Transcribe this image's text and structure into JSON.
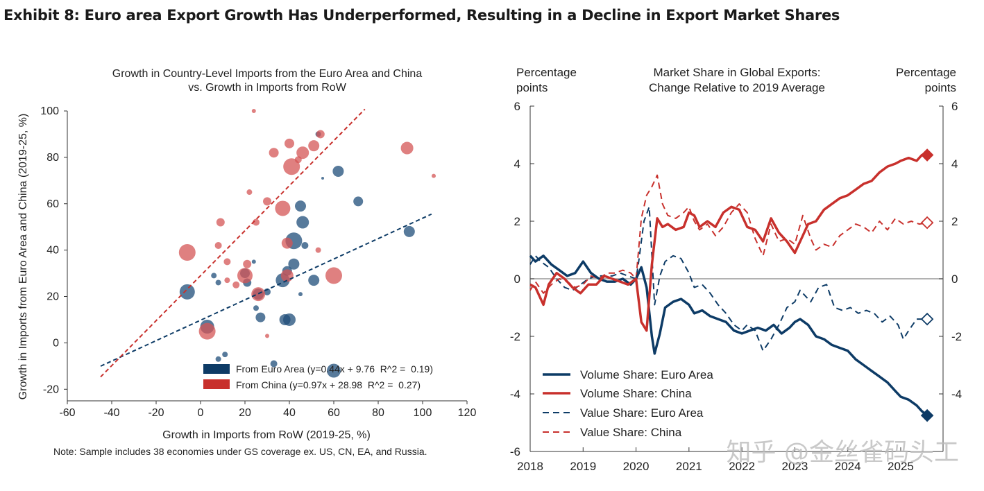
{
  "exhibit_title": "Exhibit 8: Euro area Export Growth Has Underperformed, Resulting in a Decline in Export Market Shares",
  "note": "Note: Sample includes 38 economies under GS coverage ex. US, CN, EA, and Russia.",
  "watermark": "知乎 @金丝雀码头工",
  "colors": {
    "navy": "#0d3b66",
    "red": "#c8302c",
    "navy_bubble": "#1f4e79",
    "red_bubble": "#d45555",
    "zero_line": "#999999"
  },
  "chart_data": [
    {
      "type": "scatter",
      "title_line1": "Growth in Country-Level Imports from the Euro Area and China",
      "title_line2": "vs. Growth in Imports from RoW",
      "xlabel": "Growth in Imports from RoW (2019-25, %)",
      "ylabel": "Growth in Imports from Euro Area and China (2019-25, %)",
      "xlim": [
        -60,
        120
      ],
      "ylim": [
        -25,
        100
      ],
      "xticks": [
        -60,
        -40,
        -20,
        0,
        20,
        40,
        60,
        80,
        100,
        120
      ],
      "yticks": [
        -20,
        0,
        20,
        40,
        60,
        80,
        100
      ],
      "legend_position": "bottom-right",
      "series": [
        {
          "name": "From Euro Area (y=0.44x + 9.76  R^2 =  0.19)",
          "color": "#0d3b66",
          "fit": {
            "slope": 0.44,
            "intercept": 9.76,
            "x_range": [
              -45,
              104
            ]
          },
          "points": [
            {
              "x": -6,
              "y": 22,
              "s": 11
            },
            {
              "x": 3,
              "y": 7,
              "s": 10
            },
            {
              "x": 6,
              "y": 29,
              "s": 4
            },
            {
              "x": 8,
              "y": 26,
              "s": 4
            },
            {
              "x": 8,
              "y": -7,
              "s": 4
            },
            {
              "x": 11,
              "y": -5,
              "s": 4
            },
            {
              "x": 20,
              "y": 30,
              "s": 7
            },
            {
              "x": 21,
              "y": 26,
              "s": 6
            },
            {
              "x": 24,
              "y": 35,
              "s": 3
            },
            {
              "x": 25,
              "y": 15,
              "s": 4
            },
            {
              "x": 26,
              "y": 21,
              "s": 8
            },
            {
              "x": 27,
              "y": 11,
              "s": 7
            },
            {
              "x": 30,
              "y": 22,
              "s": 5
            },
            {
              "x": 33,
              "y": -9,
              "s": 5
            },
            {
              "x": 37,
              "y": 27,
              "s": 10
            },
            {
              "x": 38,
              "y": 10,
              "s": 8
            },
            {
              "x": 39,
              "y": 31,
              "s": 7
            },
            {
              "x": 40,
              "y": 10,
              "s": 9
            },
            {
              "x": 42,
              "y": 44,
              "s": 12
            },
            {
              "x": 42,
              "y": 34,
              "s": 8
            },
            {
              "x": 45,
              "y": 59,
              "s": 8
            },
            {
              "x": 46,
              "y": 52,
              "s": 9
            },
            {
              "x": 45,
              "y": 21,
              "s": 3
            },
            {
              "x": 47,
              "y": 42,
              "s": 5
            },
            {
              "x": 51,
              "y": 27,
              "s": 8
            },
            {
              "x": 53,
              "y": 90,
              "s": 4
            },
            {
              "x": 55,
              "y": 71,
              "s": 2
            },
            {
              "x": 60,
              "y": -12,
              "s": 10
            },
            {
              "x": 62,
              "y": 74,
              "s": 8
            },
            {
              "x": 71,
              "y": 61,
              "s": 7
            },
            {
              "x": 94,
              "y": 48,
              "s": 8
            }
          ]
        },
        {
          "name": "From China (y=0.97x + 28.98  R^2 =  0.27)",
          "color": "#c8302c",
          "fit": {
            "slope": 0.97,
            "intercept": 28.98,
            "x_range": [
              -45,
              74
            ]
          },
          "points": [
            {
              "x": -6,
              "y": 39,
              "s": 12
            },
            {
              "x": 3,
              "y": 5,
              "s": 12
            },
            {
              "x": 8,
              "y": 42,
              "s": 5
            },
            {
              "x": 9,
              "y": 52,
              "s": 6
            },
            {
              "x": 12,
              "y": 35,
              "s": 5
            },
            {
              "x": 12,
              "y": 27,
              "s": 4
            },
            {
              "x": 16,
              "y": 25,
              "s": 5
            },
            {
              "x": 20,
              "y": 29,
              "s": 11
            },
            {
              "x": 21,
              "y": 34,
              "s": 6
            },
            {
              "x": 22,
              "y": 65,
              "s": 4
            },
            {
              "x": 24,
              "y": 100,
              "s": 3
            },
            {
              "x": 25,
              "y": 52,
              "s": 5
            },
            {
              "x": 26,
              "y": 21,
              "s": 10
            },
            {
              "x": 30,
              "y": 61,
              "s": 6
            },
            {
              "x": 30,
              "y": 3,
              "s": 3
            },
            {
              "x": 33,
              "y": 82,
              "s": 7
            },
            {
              "x": 37,
              "y": 58,
              "s": 11
            },
            {
              "x": 39,
              "y": 43,
              "s": 8
            },
            {
              "x": 39,
              "y": 29,
              "s": 9
            },
            {
              "x": 40,
              "y": 86,
              "s": 7
            },
            {
              "x": 41,
              "y": 76,
              "s": 12
            },
            {
              "x": 44,
              "y": 79,
              "s": 5
            },
            {
              "x": 46,
              "y": 82,
              "s": 9
            },
            {
              "x": 51,
              "y": 85,
              "s": 8
            },
            {
              "x": 53,
              "y": 40,
              "s": 4
            },
            {
              "x": 54,
              "y": 90,
              "s": 6
            },
            {
              "x": 60,
              "y": 29,
              "s": 12
            },
            {
              "x": 93,
              "y": 84,
              "s": 9
            },
            {
              "x": 105,
              "y": 72,
              "s": 3
            }
          ]
        }
      ]
    },
    {
      "type": "line",
      "title_line1": "Market Share in Global Exports:",
      "title_line2": "Change Relative to 2019 Average",
      "ylabel_left": [
        "Percentage",
        "points"
      ],
      "ylabel_right": [
        "Percentage",
        "points"
      ],
      "xlim": [
        2018,
        2025.8
      ],
      "ylim": [
        -6,
        6
      ],
      "xticks": [
        2018,
        2019,
        2020,
        2021,
        2022,
        2023,
        2024,
        2025
      ],
      "yticks_left": [
        -6,
        -4,
        -2,
        0,
        2,
        4,
        6
      ],
      "yticks_right": [
        "6",
        "4",
        "2",
        "0",
        "-2",
        "-4"
      ],
      "legend_position": "bottom-left",
      "series": [
        {
          "name": "Volume Share: Euro Area",
          "color": "#0d3b66",
          "style": "solid",
          "end_marker": "filled-diamond",
          "x": [
            2018.0,
            2018.1,
            2018.25,
            2018.4,
            2018.55,
            2018.7,
            2018.85,
            2019.0,
            2019.15,
            2019.3,
            2019.45,
            2019.6,
            2019.75,
            2019.9,
            2020.0,
            2020.1,
            2020.2,
            2020.3,
            2020.35,
            2020.45,
            2020.55,
            2020.7,
            2020.85,
            2021.0,
            2021.1,
            2021.25,
            2021.4,
            2021.55,
            2021.7,
            2021.85,
            2022.0,
            2022.15,
            2022.3,
            2022.45,
            2022.6,
            2022.75,
            2022.9,
            2023.0,
            2023.1,
            2023.25,
            2023.4,
            2023.55,
            2023.7,
            2023.85,
            2024.0,
            2024.15,
            2024.3,
            2024.45,
            2024.6,
            2024.75,
            2024.9,
            2025.0,
            2025.15,
            2025.3,
            2025.4,
            2025.5
          ],
          "y": [
            0.8,
            0.6,
            0.8,
            0.5,
            0.3,
            0.1,
            0.2,
            0.6,
            0.2,
            0.0,
            -0.1,
            -0.1,
            0.0,
            -0.2,
            0.0,
            0.4,
            -0.3,
            -2.0,
            -2.6,
            -1.9,
            -1.0,
            -0.8,
            -0.7,
            -0.9,
            -1.2,
            -1.1,
            -1.3,
            -1.4,
            -1.5,
            -1.8,
            -1.9,
            -1.8,
            -1.7,
            -1.8,
            -1.6,
            -1.9,
            -1.7,
            -1.5,
            -1.4,
            -1.6,
            -2.0,
            -2.1,
            -2.3,
            -2.4,
            -2.5,
            -2.8,
            -3.0,
            -3.2,
            -3.4,
            -3.6,
            -3.9,
            -4.1,
            -4.2,
            -4.4,
            -4.6,
            -4.75
          ]
        },
        {
          "name": "Volume Share: China",
          "color": "#c8302c",
          "style": "solid",
          "end_marker": "filled-diamond",
          "x": [
            2018.0,
            2018.1,
            2018.25,
            2018.35,
            2018.5,
            2018.65,
            2018.8,
            2018.95,
            2019.1,
            2019.25,
            2019.4,
            2019.55,
            2019.7,
            2019.85,
            2020.0,
            2020.1,
            2020.2,
            2020.3,
            2020.4,
            2020.5,
            2020.6,
            2020.75,
            2020.9,
            2021.0,
            2021.1,
            2021.2,
            2021.35,
            2021.5,
            2021.65,
            2021.8,
            2021.95,
            2022.1,
            2022.25,
            2022.4,
            2022.55,
            2022.7,
            2022.85,
            2023.0,
            2023.15,
            2023.25,
            2023.4,
            2023.55,
            2023.7,
            2023.85,
            2024.0,
            2024.15,
            2024.3,
            2024.45,
            2024.6,
            2024.75,
            2024.9,
            2025.0,
            2025.15,
            2025.3,
            2025.4,
            2025.5
          ],
          "y": [
            -0.2,
            -0.3,
            -0.9,
            -0.2,
            0.2,
            0.0,
            -0.3,
            -0.5,
            -0.2,
            -0.2,
            0.1,
            0.0,
            -0.1,
            -0.2,
            0.0,
            -1.5,
            -1.8,
            0.5,
            2.1,
            1.8,
            1.9,
            1.7,
            1.8,
            2.3,
            2.2,
            1.8,
            2.0,
            1.8,
            2.3,
            2.5,
            2.4,
            1.8,
            1.7,
            1.3,
            2.1,
            1.6,
            1.3,
            0.9,
            1.5,
            1.9,
            2.0,
            2.4,
            2.6,
            2.8,
            2.9,
            3.1,
            3.3,
            3.4,
            3.7,
            3.9,
            4.0,
            4.1,
            4.2,
            4.1,
            4.3,
            4.3
          ]
        },
        {
          "name": "Value Share: Euro Area",
          "color": "#0d3b66",
          "style": "dashed",
          "end_marker": "open-diamond",
          "x": [
            2018.0,
            2018.1,
            2018.2,
            2018.35,
            2018.5,
            2018.65,
            2018.8,
            2018.95,
            2019.1,
            2019.25,
            2019.4,
            2019.55,
            2019.7,
            2019.85,
            2020.0,
            2020.05,
            2020.15,
            2020.25,
            2020.35,
            2020.45,
            2020.55,
            2020.7,
            2020.85,
            2021.0,
            2021.1,
            2021.25,
            2021.4,
            2021.55,
            2021.7,
            2021.85,
            2022.0,
            2022.1,
            2022.25,
            2022.4,
            2022.55,
            2022.7,
            2022.85,
            2023.0,
            2023.1,
            2023.2,
            2023.3,
            2023.45,
            2023.6,
            2023.75,
            2023.9,
            2024.05,
            2024.2,
            2024.35,
            2024.5,
            2024.65,
            2024.8,
            2024.95,
            2025.05,
            2025.15,
            2025.3,
            2025.5
          ],
          "y": [
            0.5,
            0.8,
            0.6,
            0.4,
            0.0,
            -0.3,
            -0.4,
            -0.2,
            0.0,
            0.1,
            0.1,
            0.1,
            0.2,
            0.1,
            0.0,
            0.6,
            2.0,
            2.5,
            -0.9,
            0.1,
            0.6,
            0.8,
            0.7,
            0.2,
            -0.3,
            -0.2,
            -0.5,
            -0.9,
            -1.2,
            -1.6,
            -1.8,
            -1.6,
            -1.8,
            -2.5,
            -2.1,
            -1.6,
            -1.0,
            -0.8,
            -0.4,
            -0.6,
            -0.8,
            -0.3,
            -0.2,
            -1.0,
            -1.1,
            -1.0,
            -1.2,
            -1.1,
            -1.2,
            -1.5,
            -1.3,
            -1.6,
            -2.1,
            -1.8,
            -1.4,
            -1.4
          ]
        },
        {
          "name": "Value Share: China",
          "color": "#c8302c",
          "style": "dashed",
          "end_marker": "open-diamond",
          "x": [
            2018.0,
            2018.1,
            2018.25,
            2018.4,
            2018.55,
            2018.7,
            2018.85,
            2019.0,
            2019.15,
            2019.3,
            2019.45,
            2019.6,
            2019.75,
            2019.9,
            2020.0,
            2020.1,
            2020.2,
            2020.3,
            2020.4,
            2020.5,
            2020.6,
            2020.75,
            2020.9,
            2021.0,
            2021.1,
            2021.2,
            2021.35,
            2021.5,
            2021.65,
            2021.8,
            2021.95,
            2022.1,
            2022.25,
            2022.4,
            2022.55,
            2022.7,
            2022.85,
            2023.0,
            2023.15,
            2023.3,
            2023.4,
            2023.55,
            2023.7,
            2023.85,
            2024.0,
            2024.15,
            2024.3,
            2024.45,
            2024.6,
            2024.75,
            2024.9,
            2025.05,
            2025.2,
            2025.35,
            2025.5
          ],
          "y": [
            -0.4,
            -0.1,
            -0.5,
            -0.2,
            0.0,
            -0.1,
            -0.3,
            -0.2,
            0.1,
            0.0,
            0.2,
            0.2,
            0.3,
            0.2,
            0.0,
            2.1,
            2.9,
            3.2,
            3.6,
            2.6,
            2.2,
            2.1,
            2.3,
            2.5,
            2.0,
            1.7,
            1.9,
            1.5,
            1.8,
            2.3,
            2.6,
            2.3,
            1.4,
            0.8,
            1.9,
            1.3,
            1.4,
            1.2,
            2.2,
            1.4,
            1.0,
            1.2,
            1.1,
            1.5,
            1.7,
            1.9,
            1.8,
            1.6,
            2.0,
            1.7,
            2.1,
            1.9,
            2.0,
            1.9,
            1.95
          ]
        }
      ]
    }
  ]
}
